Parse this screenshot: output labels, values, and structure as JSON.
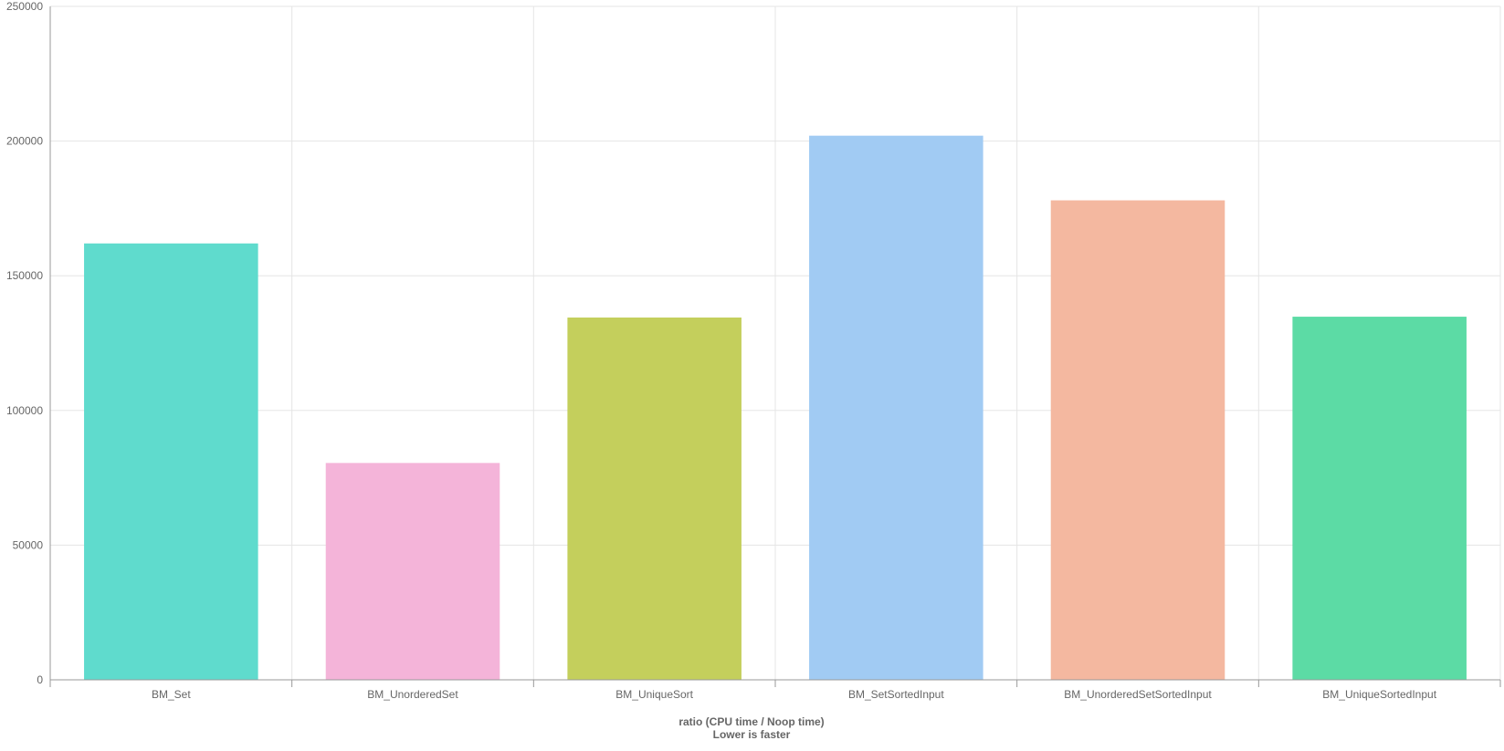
{
  "chart_data": {
    "type": "bar",
    "categories": [
      "BM_Set",
      "BM_UnorderedSet",
      "BM_UniqueSort",
      "BM_SetSortedInput",
      "BM_UnorderedSetSortedInput",
      "BM_UniqueSortedInput"
    ],
    "values": [
      162000,
      80500,
      134500,
      202000,
      178000,
      134800
    ],
    "colors": [
      "#5fdbcd",
      "#f4b4d9",
      "#c4cf5c",
      "#a1cbf3",
      "#f4b8a0",
      "#5cdba5"
    ],
    "xlabel_line1": "ratio (CPU time / Noop time)",
    "xlabel_line2": "Lower is faster",
    "ylabel": "",
    "ylim": [
      0,
      250000
    ],
    "yticks": [
      0,
      50000,
      100000,
      150000,
      200000,
      250000
    ],
    "grid": true,
    "legend": "none"
  }
}
